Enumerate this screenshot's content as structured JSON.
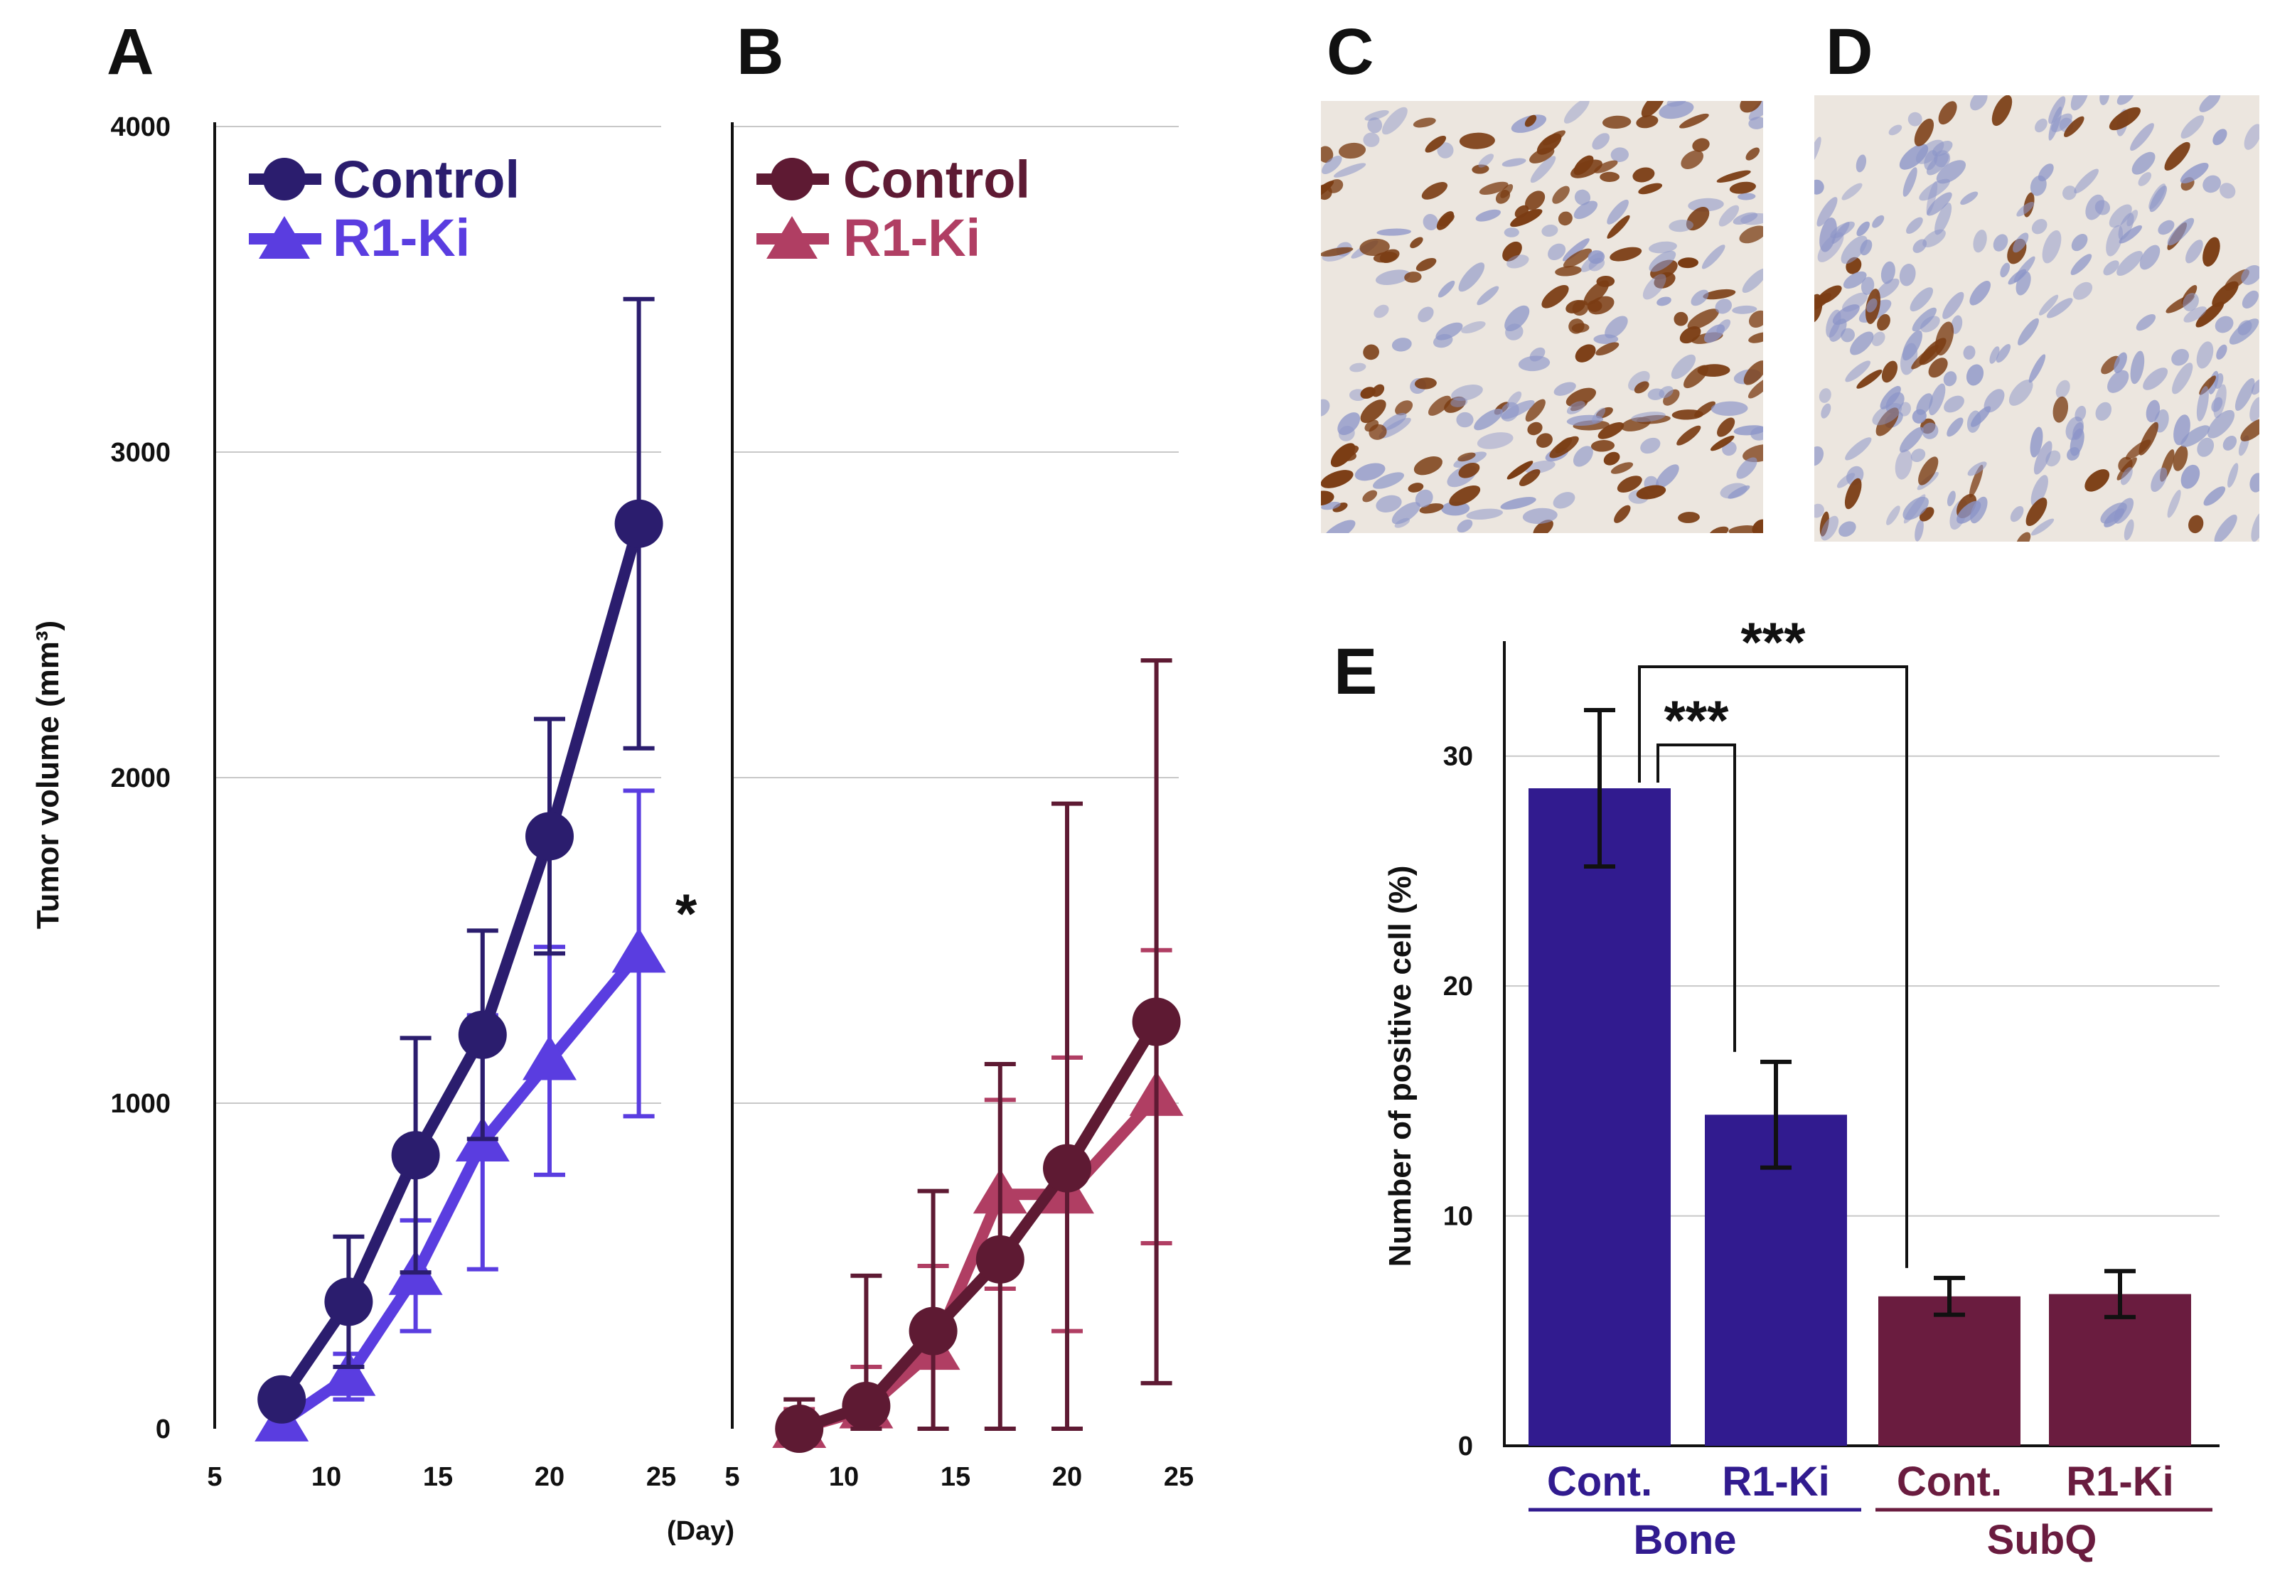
{
  "colors": {
    "a_control": "#2b1d6e",
    "a_r1ki": "#5a3de0",
    "b_control": "#5e1a33",
    "b_r1ki": "#b03e63",
    "bar_bone": "#311b8f",
    "bar_subq": "#6a1c3f",
    "grid": "#c8c8c8",
    "tissue_bg": "#ece6df",
    "nucleus_pos": "#7b3d14",
    "nucleus_neg": "#8c95c8"
  },
  "panels": {
    "a": "A",
    "b": "B",
    "c": "C",
    "d": "D",
    "e": "E"
  },
  "chart_data": [
    {
      "id": "A",
      "type": "line",
      "ylabel": "Tumor volume (mm³)",
      "xlabel": "(Day)",
      "xlim": [
        5,
        25
      ],
      "ylim": [
        0,
        4000
      ],
      "xticks": [
        "5",
        "10",
        "15",
        "20",
        "25"
      ],
      "yticks": [
        "0",
        "1000",
        "2000",
        "3000",
        "4000"
      ],
      "grid": true,
      "legend_position": "top-left",
      "annotation": "*",
      "series": [
        {
          "name": "Control",
          "marker": "circle",
          "x": [
            8,
            11,
            14,
            17,
            20,
            24
          ],
          "y": [
            90,
            390,
            840,
            1210,
            1820,
            2780
          ],
          "err": [
            0,
            200,
            360,
            320,
            360,
            690
          ]
        },
        {
          "name": "R1-Ki",
          "marker": "triangle",
          "x": [
            8,
            11,
            14,
            17,
            20,
            24
          ],
          "y": [
            20,
            160,
            470,
            880,
            1130,
            1460
          ],
          "err": [
            0,
            70,
            170,
            390,
            350,
            500
          ]
        }
      ]
    },
    {
      "id": "B",
      "type": "line",
      "xlim": [
        5,
        25
      ],
      "ylim": [
        0,
        4000
      ],
      "xticks": [
        "5",
        "10",
        "15",
        "20",
        "25"
      ],
      "grid": true,
      "legend_position": "top-left",
      "series": [
        {
          "name": "Control",
          "marker": "circle",
          "x": [
            8,
            11,
            14,
            17,
            20,
            24
          ],
          "y": [
            0,
            70,
            300,
            520,
            800,
            1250
          ],
          "err": [
            90,
            400,
            430,
            600,
            1120,
            1110
          ]
        },
        {
          "name": "R1-Ki",
          "marker": "triangle",
          "x": [
            8,
            11,
            14,
            17,
            20,
            24
          ],
          "y": [
            0,
            60,
            240,
            720,
            720,
            1020
          ],
          "err": [
            60,
            130,
            260,
            290,
            420,
            450
          ]
        }
      ]
    },
    {
      "id": "E",
      "type": "bar",
      "ylabel": "Number of positive cell (%)",
      "ylim": [
        0,
        35
      ],
      "yticks": [
        "0",
        "10",
        "20",
        "30"
      ],
      "grid": true,
      "categories": [
        "Cont.",
        "R1-Ki",
        "Cont.",
        "R1-Ki"
      ],
      "groups": [
        "Bone",
        "SubQ"
      ],
      "values": [
        28.6,
        14.4,
        6.5,
        6.6
      ],
      "err": [
        3.4,
        2.3,
        0.8,
        1.0
      ],
      "significance": [
        {
          "from": 0,
          "to": 1,
          "label": "***"
        },
        {
          "from": 0,
          "to": 2,
          "label": "***"
        }
      ]
    }
  ]
}
